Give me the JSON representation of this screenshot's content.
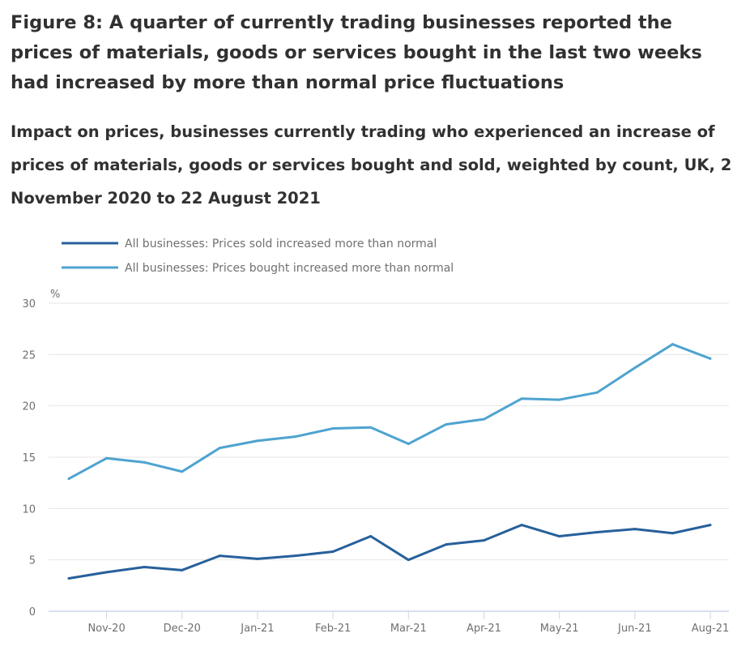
{
  "header": {
    "title": "Figure 8: A quarter of currently trading businesses reported the prices of materials, goods or services bought in the last two weeks had increased by more than normal price fluctuations",
    "subtitle": "Impact on prices, businesses currently trading who experienced an increase of prices of materials, goods or services bought and sold, weighted by count, UK, 2 November 2020 to 22 August 2021"
  },
  "chart_data": {
    "type": "line",
    "ylabel": "%",
    "ylim": [
      0,
      30
    ],
    "yticks": [
      0,
      5,
      10,
      15,
      20,
      25,
      30
    ],
    "grid": true,
    "legend_position": "top-left",
    "x_tick_labels": [
      "Nov-20",
      "Dec-20",
      "Jan-21",
      "Feb-21",
      "Mar-21",
      "Apr-21",
      "May-21",
      "Jun-21",
      "Aug-21"
    ],
    "x_tick_indices": [
      1,
      3,
      5,
      7,
      9,
      11,
      13,
      15,
      17
    ],
    "point_count": 18,
    "series": [
      {
        "name": "All businesses: Prices sold increased more than normal",
        "color": "#27609b",
        "values": [
          3.2,
          3.8,
          4.3,
          4.0,
          5.4,
          5.1,
          5.4,
          5.8,
          7.3,
          5.0,
          6.5,
          6.9,
          8.4,
          7.3,
          7.7,
          8.0,
          7.6,
          8.4
        ]
      },
      {
        "name": "All businesses: Prices bought increased more than normal",
        "color": "#4ea3d0",
        "values": [
          12.9,
          14.9,
          14.5,
          13.6,
          15.9,
          16.6,
          17.0,
          17.8,
          17.9,
          16.3,
          18.2,
          18.7,
          20.7,
          20.6,
          21.3,
          23.7,
          26.0,
          24.6
        ]
      }
    ]
  }
}
